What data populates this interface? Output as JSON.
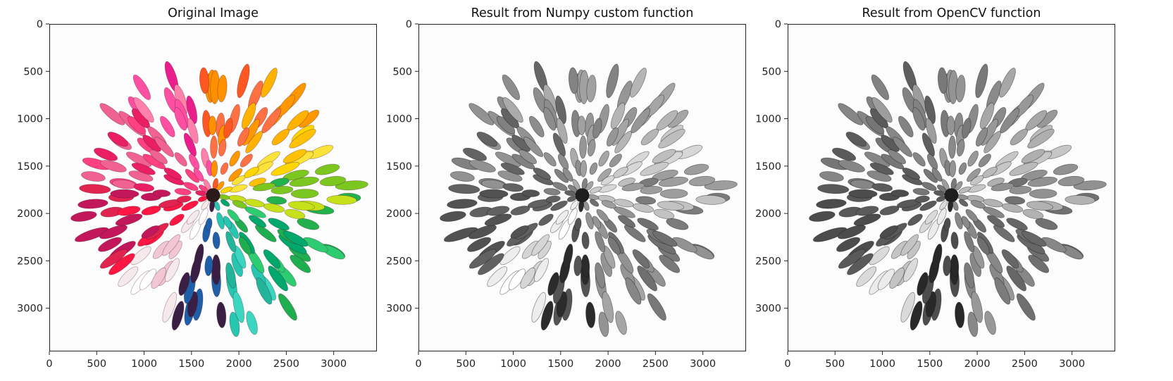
{
  "figure": {
    "panels": [
      {
        "title": "Original Image",
        "mode": "color"
      },
      {
        "title": "Result from Numpy custom function",
        "mode": "gray"
      },
      {
        "title": "Result from OpenCV function",
        "mode": "gray-dark"
      }
    ],
    "x_ticks": [
      "0",
      "500",
      "1000",
      "1500",
      "2000",
      "2500",
      "3000"
    ],
    "y_ticks": [
      "0",
      "500",
      "1000",
      "1500",
      "2000",
      "2500",
      "3000"
    ],
    "axis_range": [
      0,
      3456
    ]
  },
  "image_content": {
    "subject": "chrysanthemum flower",
    "petal_colors": [
      "#e91e63",
      "#ff4081",
      "#ff6f00",
      "#ffa000",
      "#ffd600",
      "#c6e01a",
      "#22b14c",
      "#00a86b",
      "#26c6b0",
      "#ffffff",
      "#3a1a4a",
      "#1e5fa8",
      "#d81b60",
      "#ff1744"
    ],
    "background": "#fdfcfd"
  }
}
